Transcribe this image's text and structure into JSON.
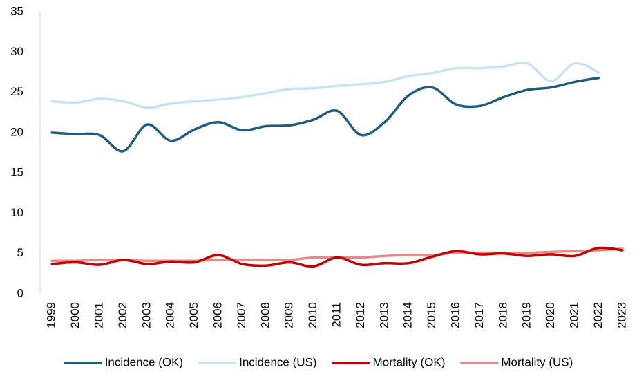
{
  "chart_data": {
    "type": "line",
    "categories": [
      "1999",
      "2000",
      "2001",
      "2002",
      "2003",
      "2004",
      "2005",
      "2006",
      "2007",
      "2008",
      "2009",
      "2010",
      "2011",
      "2012",
      "2013",
      "2014",
      "2015",
      "2016",
      "2017",
      "2018",
      "2019",
      "2020",
      "2021",
      "2022",
      "2023"
    ],
    "series": [
      {
        "name": "Incidence (OK)",
        "color": "#1f5c7a",
        "values": [
          20.0,
          19.8,
          19.7,
          17.7,
          21.0,
          19.0,
          20.4,
          21.3,
          20.3,
          20.8,
          20.9,
          21.6,
          22.7,
          19.7,
          21.3,
          24.6,
          25.6,
          23.5,
          23.3,
          24.4,
          25.3,
          25.6,
          26.3,
          26.8,
          null
        ]
      },
      {
        "name": "Incidence (US)",
        "color": "#c5e3f2",
        "values": [
          23.9,
          23.7,
          24.2,
          23.9,
          23.1,
          23.6,
          23.9,
          24.1,
          24.4,
          24.9,
          25.4,
          25.5,
          25.8,
          26.0,
          26.3,
          27.0,
          27.4,
          28.0,
          28.0,
          28.2,
          28.6,
          26.4,
          28.6,
          27.5,
          null
        ]
      },
      {
        "name": "Mortality (OK)",
        "color": "#c00000",
        "values": [
          3.7,
          3.9,
          3.6,
          4.2,
          3.7,
          4.0,
          3.9,
          4.8,
          3.7,
          3.5,
          3.9,
          3.4,
          4.5,
          3.6,
          3.8,
          3.8,
          4.6,
          5.3,
          4.9,
          5.0,
          4.7,
          4.9,
          4.7,
          5.7,
          5.4
        ]
      },
      {
        "name": "Mortality (US)",
        "color": "#e48a8a",
        "values": [
          4.1,
          4.1,
          4.2,
          4.2,
          4.1,
          4.1,
          4.1,
          4.2,
          4.2,
          4.2,
          4.2,
          4.5,
          4.5,
          4.5,
          4.7,
          4.8,
          4.8,
          5.1,
          5.1,
          5.1,
          5.1,
          5.2,
          5.3,
          5.4,
          5.6
        ]
      }
    ],
    "ylim": [
      0,
      35
    ],
    "yticks": [
      0,
      5,
      10,
      15,
      20,
      25,
      30,
      35
    ],
    "grid": false,
    "legend": "bottom"
  }
}
